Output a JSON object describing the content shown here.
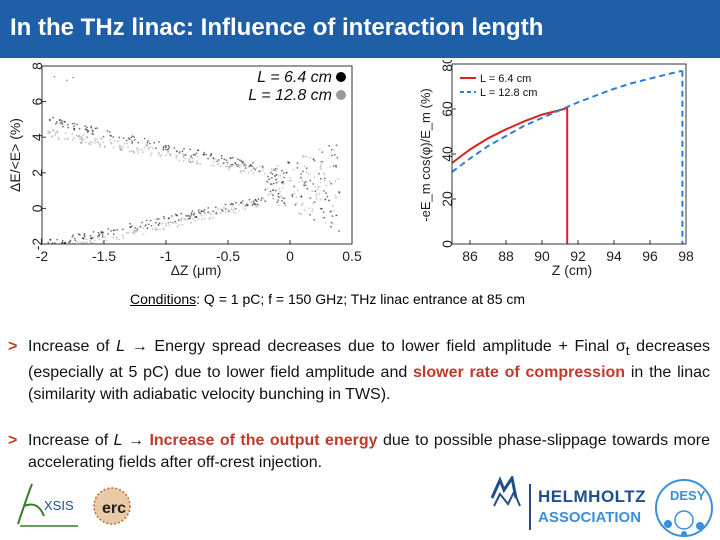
{
  "title": "In the THz linac: Influence of interaction length",
  "chart_data": [
    {
      "type": "scatter",
      "xlabel": "ΔZ (μm)",
      "ylabel": "ΔE/<E> (%)",
      "xlim": [
        -2,
        0.5
      ],
      "ylim": [
        -2,
        8
      ],
      "xticks": [
        "-2",
        "-1.5",
        "-1",
        "-0.5",
        "0",
        "0.5"
      ],
      "yticks": [
        "-2",
        "0",
        "2",
        "4",
        "6",
        "8"
      ],
      "legend_position": "top-right",
      "series": [
        {
          "name": "L = 6.4 cm",
          "color": "#000000",
          "marker": "●"
        },
        {
          "name": "L = 12.8 cm",
          "color": "#999999",
          "marker": "●"
        }
      ]
    },
    {
      "type": "line",
      "xlabel": "Z (cm)",
      "ylabel": "-eE_m cos(φ)/E_m (%)",
      "xlim": [
        85,
        98
      ],
      "ylim": [
        0,
        80
      ],
      "xticks": [
        "86",
        "88",
        "90",
        "92",
        "94",
        "96",
        "98"
      ],
      "yticks": [
        "0",
        "20",
        "40",
        "60",
        "80"
      ],
      "legend_position": "top-left",
      "series": [
        {
          "name": "L = 6.4 cm",
          "color": "#dd2222",
          "style": "solid",
          "x": [
            85,
            86,
            87,
            88,
            89,
            90,
            91,
            91.4
          ],
          "y": [
            36,
            42,
            47,
            51,
            54.5,
            57.5,
            59.5,
            60.5
          ]
        },
        {
          "name": "L = 12.8 cm",
          "color": "#2a7fd4",
          "style": "dashed",
          "x": [
            85,
            86,
            87,
            88,
            89,
            90,
            91,
            92,
            93,
            94,
            95,
            96,
            97,
            97.8
          ],
          "y": [
            32,
            38,
            43.5,
            48,
            52.5,
            56,
            59.5,
            63,
            66,
            69,
            71.5,
            73.5,
            75.5,
            77
          ]
        }
      ],
      "drop_lines": [
        {
          "series": 0,
          "x": 91.4
        },
        {
          "series": 1,
          "x": 97.8
        }
      ]
    }
  ],
  "conditions": {
    "label": "Conditions",
    "text": ": Q = 1 pC; f = 150 GHz; THz linac entrance at 85 cm"
  },
  "bullets": {
    "marker": ">",
    "b1": {
      "p1": "Increase of ",
      "L": "L",
      "arrow": "→",
      "p2": " Energy spread decreases due to lower field amplitude + Final ",
      "sigma": "σ",
      "sub": "t",
      "p3": " decreases (especially at 5 pC) due to lower field amplitude and ",
      "red1": "slower rate of compression",
      "p4": " in the linac (similarity with adiabatic velocity bunching in TWS)."
    },
    "b2": {
      "p1": "Increase of ",
      "L": "L",
      "arrow": "→",
      "red1": "Increase of the output energy",
      "p2": " due to possible phase-slippage towards more accelerating fields after off-crest injection."
    }
  },
  "logos": {
    "axsis": "XSIS",
    "erc": "erc",
    "helmholtz_1": "HELMHOLTZ",
    "helmholtz_2": "ASSOCIATION",
    "desy": "DESY"
  },
  "colors": {
    "title_bar": "#1f5fa8",
    "accent_red": "#c0392b",
    "helmholtz_blue": "#1f4f8a",
    "desy_blue": "#3a8fd8"
  }
}
